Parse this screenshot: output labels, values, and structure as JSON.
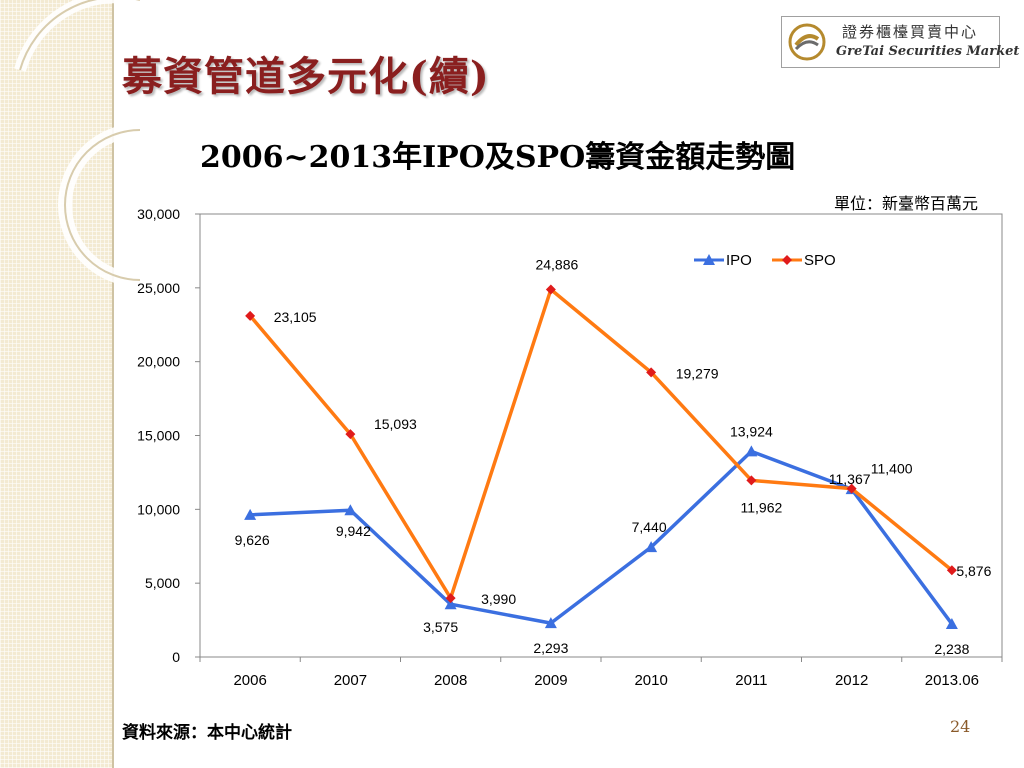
{
  "page": {
    "title": "募資管道多元化(續)",
    "logo": {
      "name_cn": "證券櫃檯買賣中心",
      "name_en": "GreTai Securities Market"
    },
    "unit": "單位：新臺幣百萬元",
    "source": "資料來源：本中心統計",
    "page_number": "24"
  },
  "colors": {
    "ipo": "#3b6fe0",
    "spo": "#ff7a12",
    "spo_marker": "#e01b1b",
    "title": "#8a1f1f"
  },
  "chart_data": {
    "type": "line",
    "title": "2006~2013年IPO及SPO籌資金額走勢圖",
    "xlabel": "",
    "ylabel": "",
    "categories": [
      "2006",
      "2007",
      "2008",
      "2009",
      "2010",
      "2011",
      "2012",
      "2013.06"
    ],
    "ylim": [
      0,
      30000
    ],
    "yticks": [
      0,
      5000,
      10000,
      15000,
      20000,
      25000,
      30000
    ],
    "ytick_labels": [
      "0",
      "5,000",
      "10,000",
      "15,000",
      "20,000",
      "25,000",
      "30,000"
    ],
    "legend_position": "top-right",
    "grid": false,
    "series": [
      {
        "name": "IPO",
        "marker": "triangle",
        "values": [
          9626,
          9942,
          3575,
          2293,
          7440,
          13924,
          11367,
          2238
        ],
        "labels": [
          "9,626",
          "9,942",
          "3,575",
          "2,293",
          "7,440",
          "13,924",
          "11,367",
          "2,238"
        ]
      },
      {
        "name": "SPO",
        "marker": "diamond",
        "values": [
          23105,
          15093,
          3990,
          24886,
          19279,
          11962,
          11400,
          5876
        ],
        "labels": [
          "23,105",
          "15,093",
          "3,990",
          "24,886",
          "19,279",
          "11,962",
          "11,400",
          "5,876"
        ]
      }
    ]
  }
}
